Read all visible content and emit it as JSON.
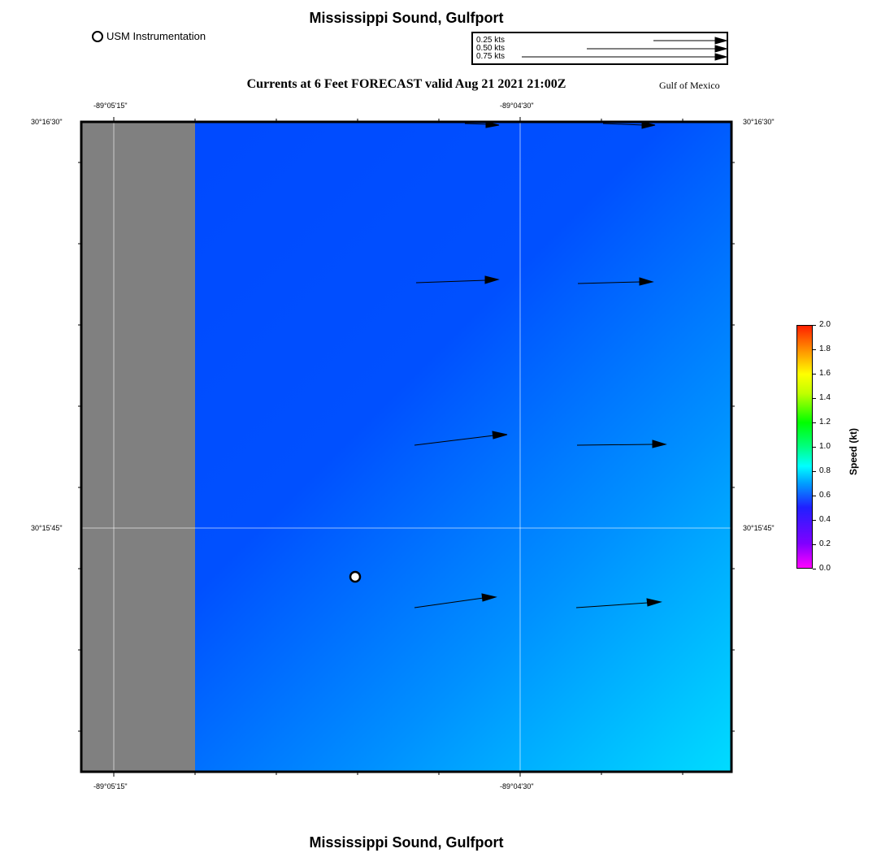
{
  "header": {
    "title": "Mississippi Sound, Gulfport",
    "subtitle": "Currents at 6 Feet FORECAST valid Aug 21 2021 21:00Z",
    "region": "Gulf of Mexico"
  },
  "footer": {
    "title": "Mississippi Sound, Gulfport"
  },
  "legend": {
    "station_label": "USM Instrumentation",
    "station_icon": "circle-icon"
  },
  "vector_scale": {
    "labels": [
      "0.25 kts",
      "0.50 kts",
      "0.75 kts"
    ],
    "speeds_kts": [
      0.25,
      0.5,
      0.75
    ]
  },
  "axes": {
    "lon_labels": [
      "-89°05'15\"",
      "-89°04'30\""
    ],
    "lat_labels": [
      "30°16'30\"",
      "30°15'45\""
    ]
  },
  "colorbar": {
    "title": "Speed (kt)",
    "ticks": [
      "2.0",
      "1.8",
      "1.6",
      "1.4",
      "1.2",
      "1.0",
      "0.8",
      "0.6",
      "0.4",
      "0.2",
      "0.0"
    ],
    "min": 0.0,
    "max": 2.0
  },
  "colors": {
    "land": "#808080",
    "water_low": "#0050ff",
    "water_high": "#00dcff",
    "arrow": "#000000"
  }
}
